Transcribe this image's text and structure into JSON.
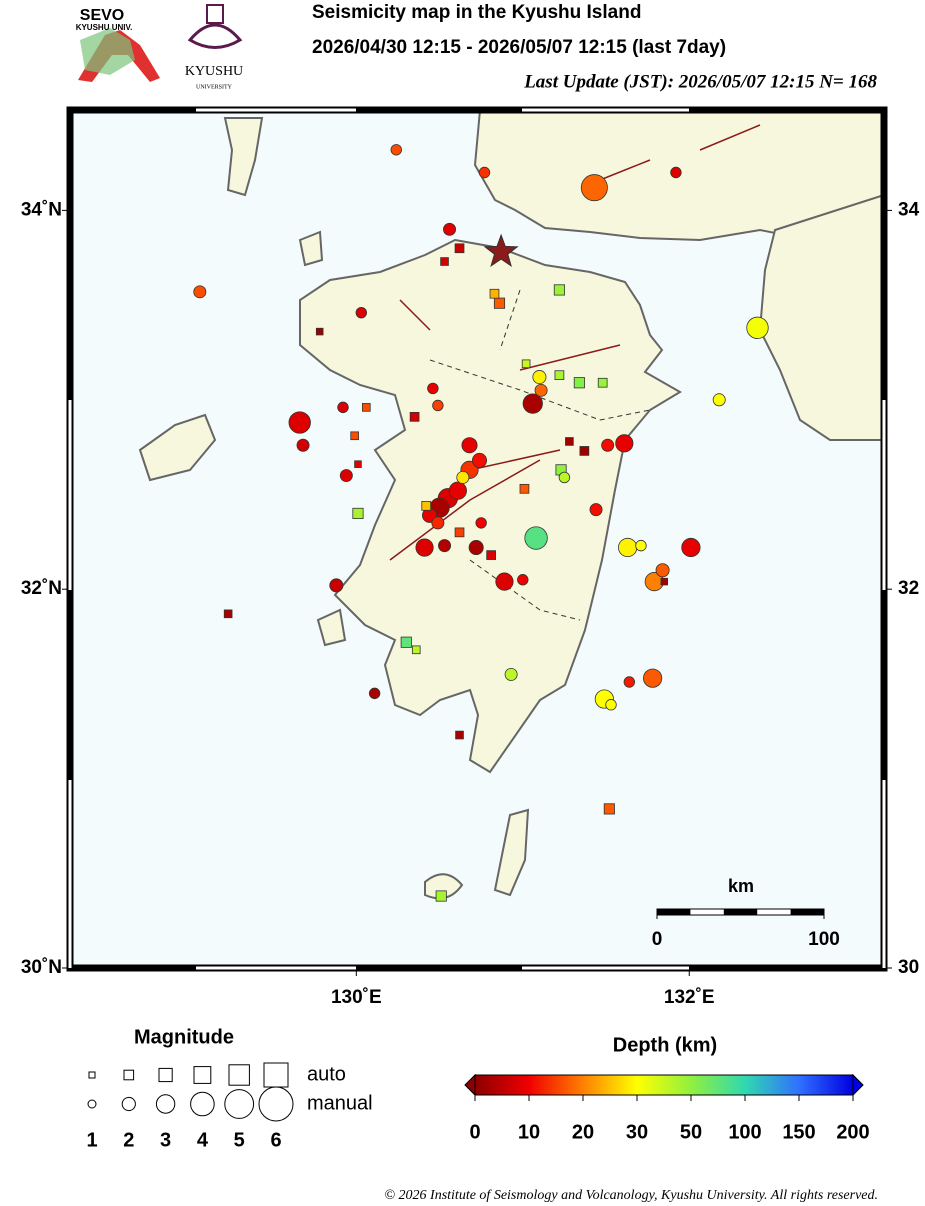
{
  "header": {
    "title": "Seismicity map in the Kyushu Island",
    "period": "2026/04/30 12:15 - 2026/05/07 12:15 (last 7day)",
    "update": "Last Update (JST): 2026/05/07 12:15  N= 168"
  },
  "logos": {
    "sevo": "SEVO",
    "sevo_sub": "KYUSHU UNIV.",
    "univ": "KYUSHU",
    "univ_sub": "UNIVERSITY"
  },
  "map": {
    "lonlim": [
      128.28,
      133.17
    ],
    "latlim": [
      30,
      34.53
    ],
    "lat_ticks": [
      {
        "value": 34,
        "label": "34˚N"
      },
      {
        "value": 32,
        "label": "32˚N"
      },
      {
        "value": 30,
        "label": "30˚N"
      }
    ],
    "lat_ticks_right": [
      34,
      32,
      30
    ],
    "lon_ticks": [
      {
        "value": 130,
        "label": "130˚E"
      },
      {
        "value": 132,
        "label": "132˚E"
      }
    ],
    "star": {
      "lon": 130.87,
      "lat": 33.78,
      "color": "#8b1a1a"
    },
    "scale_bar": {
      "unit": "km",
      "ticks": [
        0,
        100
      ]
    }
  },
  "events": [
    {
      "lon": 130.24,
      "lat": 34.32,
      "depth": 16,
      "mag": 1.5,
      "kind": "manual"
    },
    {
      "lon": 131.43,
      "lat": 34.12,
      "depth": 18,
      "mag": 4.5,
      "kind": "manual"
    },
    {
      "lon": 131.92,
      "lat": 34.2,
      "depth": 8,
      "mag": 1.5,
      "kind": "manual"
    },
    {
      "lon": 130.77,
      "lat": 34.2,
      "depth": 14,
      "mag": 1.5,
      "kind": "manual"
    },
    {
      "lon": 130.56,
      "lat": 33.9,
      "depth": 8,
      "mag": 1.8,
      "kind": "manual"
    },
    {
      "lon": 130.62,
      "lat": 33.8,
      "depth": 6,
      "mag": 1.8,
      "kind": "auto"
    },
    {
      "lon": 130.53,
      "lat": 33.73,
      "depth": 7,
      "mag": 1.5,
      "kind": "auto"
    },
    {
      "lon": 129.06,
      "lat": 33.57,
      "depth": 16,
      "mag": 1.8,
      "kind": "manual"
    },
    {
      "lon": 130.83,
      "lat": 33.56,
      "depth": 24,
      "mag": 1.8,
      "kind": "auto"
    },
    {
      "lon": 130.86,
      "lat": 33.51,
      "depth": 17,
      "mag": 2.2,
      "kind": "auto"
    },
    {
      "lon": 131.22,
      "lat": 33.58,
      "depth": 48,
      "mag": 2.2,
      "kind": "auto"
    },
    {
      "lon": 130.03,
      "lat": 33.46,
      "depth": 8,
      "mag": 1.5,
      "kind": "manual"
    },
    {
      "lon": 129.78,
      "lat": 33.36,
      "depth": 2,
      "mag": 1.2,
      "kind": "auto"
    },
    {
      "lon": 132.41,
      "lat": 33.38,
      "depth": 32,
      "mag": 3.6,
      "kind": "manual"
    },
    {
      "lon": 131.02,
      "lat": 33.19,
      "depth": 40,
      "mag": 1.5,
      "kind": "auto"
    },
    {
      "lon": 131.1,
      "lat": 33.12,
      "depth": 29,
      "mag": 2.0,
      "kind": "manual"
    },
    {
      "lon": 131.22,
      "lat": 33.13,
      "depth": 45,
      "mag": 1.8,
      "kind": "auto"
    },
    {
      "lon": 131.34,
      "lat": 33.09,
      "depth": 55,
      "mag": 2.2,
      "kind": "auto"
    },
    {
      "lon": 131.48,
      "lat": 33.09,
      "depth": 48,
      "mag": 1.8,
      "kind": "auto"
    },
    {
      "lon": 130.46,
      "lat": 33.06,
      "depth": 9,
      "mag": 1.5,
      "kind": "manual"
    },
    {
      "lon": 131.11,
      "lat": 33.05,
      "depth": 18,
      "mag": 1.8,
      "kind": "manual"
    },
    {
      "lon": 131.06,
      "lat": 32.98,
      "depth": 3,
      "mag": 3.2,
      "kind": "manual"
    },
    {
      "lon": 132.18,
      "lat": 33.0,
      "depth": 30,
      "mag": 1.8,
      "kind": "manual"
    },
    {
      "lon": 130.49,
      "lat": 32.97,
      "depth": 15,
      "mag": 1.5,
      "kind": "manual"
    },
    {
      "lon": 130.35,
      "lat": 32.91,
      "depth": 7,
      "mag": 1.8,
      "kind": "auto"
    },
    {
      "lon": 130.06,
      "lat": 32.96,
      "depth": 16,
      "mag": 1.5,
      "kind": "auto"
    },
    {
      "lon": 129.92,
      "lat": 32.96,
      "depth": 8,
      "mag": 1.5,
      "kind": "manual"
    },
    {
      "lon": 129.66,
      "lat": 32.88,
      "depth": 8,
      "mag": 3.6,
      "kind": "manual"
    },
    {
      "lon": 129.68,
      "lat": 32.76,
      "depth": 7,
      "mag": 1.8,
      "kind": "manual"
    },
    {
      "lon": 129.99,
      "lat": 32.81,
      "depth": 16,
      "mag": 1.5,
      "kind": "auto"
    },
    {
      "lon": 131.28,
      "lat": 32.78,
      "depth": 2,
      "mag": 1.5,
      "kind": "auto"
    },
    {
      "lon": 131.37,
      "lat": 32.73,
      "depth": 2,
      "mag": 1.8,
      "kind": "auto"
    },
    {
      "lon": 131.51,
      "lat": 32.76,
      "depth": 11,
      "mag": 1.8,
      "kind": "manual"
    },
    {
      "lon": 131.61,
      "lat": 32.77,
      "depth": 9,
      "mag": 2.8,
      "kind": "manual"
    },
    {
      "lon": 130.68,
      "lat": 32.76,
      "depth": 9,
      "mag": 2.4,
      "kind": "manual"
    },
    {
      "lon": 130.74,
      "lat": 32.68,
      "depth": 11,
      "mag": 2.2,
      "kind": "manual"
    },
    {
      "lon": 130.68,
      "lat": 32.63,
      "depth": 14,
      "mag": 2.8,
      "kind": "manual"
    },
    {
      "lon": 130.64,
      "lat": 32.59,
      "depth": 28,
      "mag": 1.8,
      "kind": "manual"
    },
    {
      "lon": 130.61,
      "lat": 32.52,
      "depth": 9,
      "mag": 2.8,
      "kind": "manual"
    },
    {
      "lon": 130.55,
      "lat": 32.48,
      "depth": 8,
      "mag": 3.2,
      "kind": "manual"
    },
    {
      "lon": 130.5,
      "lat": 32.43,
      "depth": 3,
      "mag": 3.2,
      "kind": "manual"
    },
    {
      "lon": 130.44,
      "lat": 32.39,
      "depth": 9,
      "mag": 2.2,
      "kind": "manual"
    },
    {
      "lon": 130.42,
      "lat": 32.44,
      "depth": 25,
      "mag": 1.8,
      "kind": "auto"
    },
    {
      "lon": 130.49,
      "lat": 32.35,
      "depth": 13,
      "mag": 1.8,
      "kind": "manual"
    },
    {
      "lon": 130.53,
      "lat": 32.23,
      "depth": 4,
      "mag": 1.8,
      "kind": "manual"
    },
    {
      "lon": 130.41,
      "lat": 32.22,
      "depth": 8,
      "mag": 2.8,
      "kind": "manual"
    },
    {
      "lon": 130.62,
      "lat": 32.3,
      "depth": 15,
      "mag": 1.8,
      "kind": "auto"
    },
    {
      "lon": 130.72,
      "lat": 32.22,
      "depth": 3,
      "mag": 2.2,
      "kind": "manual"
    },
    {
      "lon": 130.81,
      "lat": 32.18,
      "depth": 8,
      "mag": 1.8,
      "kind": "auto"
    },
    {
      "lon": 130.75,
      "lat": 32.35,
      "depth": 10,
      "mag": 1.5,
      "kind": "manual"
    },
    {
      "lon": 129.94,
      "lat": 32.6,
      "depth": 8,
      "mag": 1.8,
      "kind": "manual"
    },
    {
      "lon": 130.01,
      "lat": 32.66,
      "depth": 9,
      "mag": 1.2,
      "kind": "auto"
    },
    {
      "lon": 130.01,
      "lat": 32.4,
      "depth": 46,
      "mag": 2.2,
      "kind": "auto"
    },
    {
      "lon": 131.01,
      "lat": 32.53,
      "depth": 17,
      "mag": 1.8,
      "kind": "auto"
    },
    {
      "lon": 131.23,
      "lat": 32.63,
      "depth": 50,
      "mag": 2.2,
      "kind": "auto"
    },
    {
      "lon": 131.25,
      "lat": 32.59,
      "depth": 42,
      "mag": 1.5,
      "kind": "manual"
    },
    {
      "lon": 131.08,
      "lat": 32.27,
      "depth": 80,
      "mag": 3.8,
      "kind": "manual"
    },
    {
      "lon": 131.44,
      "lat": 32.42,
      "depth": 11,
      "mag": 1.8,
      "kind": "manual"
    },
    {
      "lon": 131.63,
      "lat": 32.22,
      "depth": 29,
      "mag": 3.0,
      "kind": "manual"
    },
    {
      "lon": 131.71,
      "lat": 32.23,
      "depth": 30,
      "mag": 1.5,
      "kind": "manual"
    },
    {
      "lon": 132.01,
      "lat": 32.22,
      "depth": 9,
      "mag": 3.0,
      "kind": "manual"
    },
    {
      "lon": 131.79,
      "lat": 32.04,
      "depth": 20,
      "mag": 3.0,
      "kind": "manual"
    },
    {
      "lon": 131.84,
      "lat": 32.1,
      "depth": 17,
      "mag": 2.0,
      "kind": "manual"
    },
    {
      "lon": 131.85,
      "lat": 32.04,
      "depth": 2,
      "mag": 1.2,
      "kind": "auto"
    },
    {
      "lon": 130.89,
      "lat": 32.04,
      "depth": 8,
      "mag": 2.8,
      "kind": "manual"
    },
    {
      "lon": 131.0,
      "lat": 32.05,
      "depth": 10,
      "mag": 1.5,
      "kind": "manual"
    },
    {
      "lon": 129.88,
      "lat": 32.02,
      "depth": 6,
      "mag": 2.0,
      "kind": "manual"
    },
    {
      "lon": 129.23,
      "lat": 31.87,
      "depth": 3,
      "mag": 1.5,
      "kind": "auto"
    },
    {
      "lon": 130.3,
      "lat": 31.72,
      "depth": 75,
      "mag": 2.2,
      "kind": "auto"
    },
    {
      "lon": 130.36,
      "lat": 31.68,
      "depth": 42,
      "mag": 1.5,
      "kind": "auto"
    },
    {
      "lon": 130.93,
      "lat": 31.55,
      "depth": 42,
      "mag": 1.8,
      "kind": "manual"
    },
    {
      "lon": 131.78,
      "lat": 31.53,
      "depth": 17,
      "mag": 3.0,
      "kind": "manual"
    },
    {
      "lon": 131.64,
      "lat": 31.51,
      "depth": 12,
      "mag": 1.5,
      "kind": "manual"
    },
    {
      "lon": 131.49,
      "lat": 31.42,
      "depth": 30,
      "mag": 3.0,
      "kind": "manual"
    },
    {
      "lon": 131.53,
      "lat": 31.39,
      "depth": 30,
      "mag": 1.5,
      "kind": "manual"
    },
    {
      "lon": 130.11,
      "lat": 31.45,
      "depth": 3,
      "mag": 1.5,
      "kind": "manual"
    },
    {
      "lon": 130.62,
      "lat": 31.23,
      "depth": 3,
      "mag": 1.5,
      "kind": "auto"
    },
    {
      "lon": 131.52,
      "lat": 30.84,
      "depth": 17,
      "mag": 2.2,
      "kind": "auto"
    },
    {
      "lon": 130.51,
      "lat": 30.38,
      "depth": 46,
      "mag": 2.2,
      "kind": "auto"
    }
  ],
  "legend": {
    "title": "Magnitude",
    "magnitudes": [
      1,
      2,
      3,
      4,
      5,
      6
    ],
    "auto": "auto",
    "manual": "manual"
  },
  "colorbar": {
    "title": "Depth (km)",
    "depth_ticks": [
      0,
      10,
      20,
      30,
      50,
      100,
      150,
      200
    ],
    "depth_colors": [
      "#8b0000",
      "#f00000",
      "#ff8000",
      "#ffff00",
      "#90f040",
      "#30d8b0",
      "#3070ff",
      "#0000e0"
    ]
  },
  "footer": {
    "copyright": "© 2026 Institute of Seismology and Volcanology, Kyushu University. All rights reserved."
  }
}
